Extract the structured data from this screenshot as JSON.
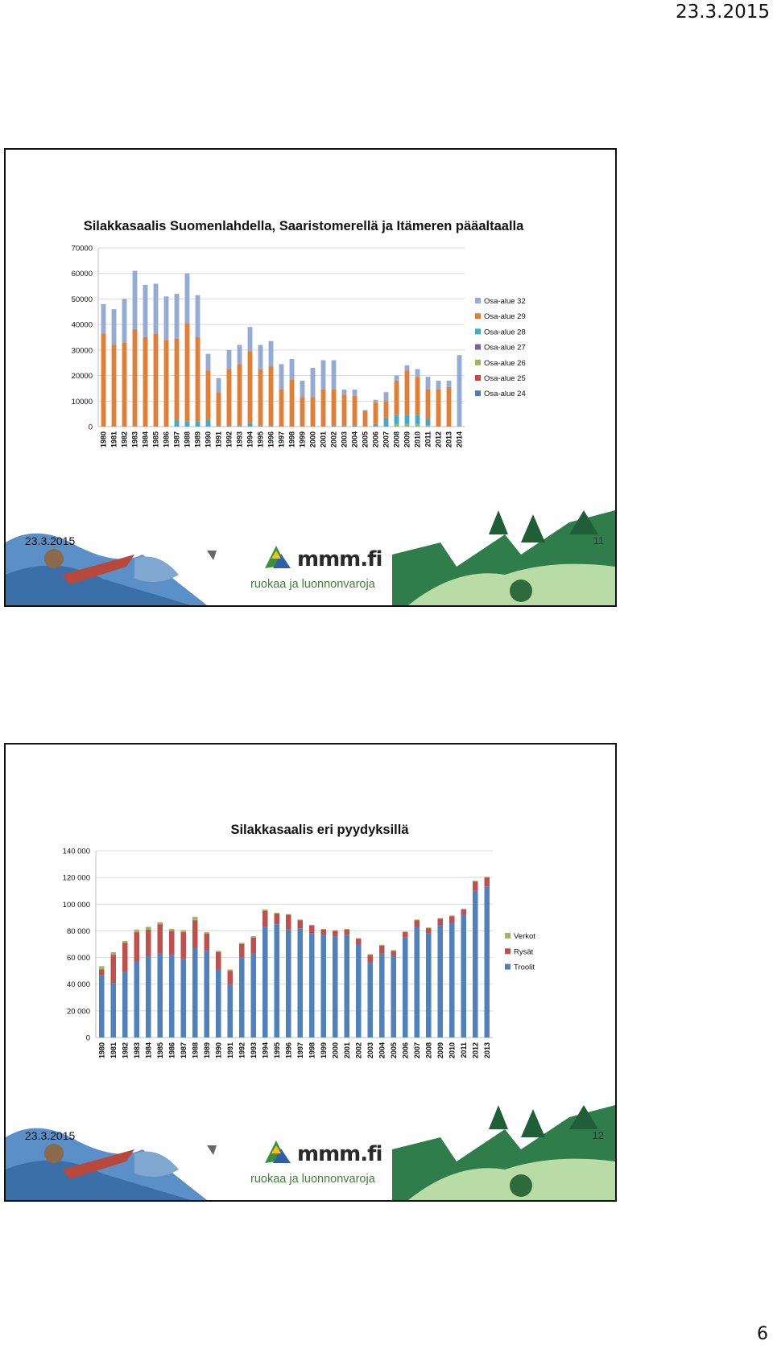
{
  "page": {
    "date": "23.3.2015",
    "number": "6"
  },
  "slides": [
    {
      "footer_date": "23.3.2015",
      "slide_number": "11",
      "logo_text": "mmm.fi",
      "logo_sub": "ruokaa ja luonnonvaroja"
    },
    {
      "footer_date": "23.3.2015",
      "slide_number": "12",
      "logo_text": "mmm.fi",
      "logo_sub": "ruokaa ja luonnonvaroja"
    }
  ],
  "chart_data": [
    {
      "type": "bar",
      "stacked": true,
      "title": "Silakkasaalis Suomenlahdella, Saaristomerellä ja Itämeren pääaltaalla",
      "xlabel": "",
      "ylabel": "",
      "ylim": [
        0,
        70000
      ],
      "yticks": [
        0,
        10000,
        20000,
        30000,
        40000,
        50000,
        60000,
        70000
      ],
      "grid": true,
      "legend_position": "right",
      "categories": [
        "1980",
        "1981",
        "1982",
        "1983",
        "1984",
        "1985",
        "1986",
        "1987",
        "1988",
        "1989",
        "1990",
        "1991",
        "1992",
        "1993",
        "1994",
        "1995",
        "1996",
        "1997",
        "1998",
        "1999",
        "2000",
        "2001",
        "2002",
        "2003",
        "2004",
        "2005",
        "2006",
        "2007",
        "2008",
        "2009",
        "2010",
        "2011",
        "2012",
        "2013",
        "2014"
      ],
      "series": [
        {
          "name": "Osa-alue 24",
          "color": "#4a7ebb",
          "values": [
            0,
            0,
            0,
            0,
            0,
            0,
            0,
            0,
            0,
            0,
            0,
            0,
            0,
            0,
            0,
            0,
            0,
            0,
            0,
            0,
            0,
            0,
            0,
            0,
            0,
            0,
            0,
            0,
            0,
            0,
            0,
            0,
            0,
            0,
            0
          ]
        },
        {
          "name": "Osa-alue 25",
          "color": "#be4b48",
          "values": [
            0,
            0,
            0,
            0,
            0,
            0,
            0,
            0,
            0,
            0,
            0,
            0,
            0,
            0,
            0,
            0,
            0,
            0,
            0,
            0,
            0,
            0,
            0,
            0,
            0,
            0,
            0,
            0,
            0,
            0,
            0,
            0,
            0,
            0,
            0
          ]
        },
        {
          "name": "Osa-alue 26",
          "color": "#98b954",
          "values": [
            0,
            0,
            0,
            0,
            0,
            0,
            0,
            0,
            0,
            0,
            0,
            0,
            0,
            0,
            0,
            0,
            0,
            0,
            0,
            0,
            0,
            0,
            0,
            0,
            0,
            0,
            0,
            0,
            1000,
            1000,
            1000,
            500,
            0,
            0,
            0
          ]
        },
        {
          "name": "Osa-alue 27",
          "color": "#7d60a0",
          "values": [
            0,
            0,
            0,
            0,
            0,
            0,
            0,
            0,
            0,
            0,
            0,
            0,
            0,
            0,
            0,
            0,
            0,
            0,
            0,
            0,
            0,
            0,
            0,
            0,
            0,
            0,
            0,
            0,
            0,
            0,
            0,
            0,
            0,
            0,
            0
          ]
        },
        {
          "name": "Osa-alue 28",
          "color": "#46aac5",
          "values": [
            0,
            0,
            0,
            0,
            0,
            0,
            0,
            2500,
            2000,
            2000,
            2500,
            500,
            500,
            500,
            1500,
            500,
            500,
            0,
            0,
            0,
            0,
            0,
            500,
            500,
            500,
            0,
            1000,
            3500,
            3500,
            3500,
            3500,
            2500,
            0,
            0,
            0
          ]
        },
        {
          "name": "Osa-alue 29",
          "color": "#e07f35",
          "values": [
            36500,
            32000,
            33000,
            38000,
            35000,
            36500,
            34000,
            32000,
            38500,
            33000,
            19500,
            13000,
            22000,
            24000,
            28000,
            22000,
            23000,
            14500,
            18500,
            11500,
            11500,
            14500,
            14000,
            12000,
            11500,
            6000,
            8500,
            6500,
            13500,
            17500,
            15000,
            11500,
            14500,
            15500,
            0
          ]
        },
        {
          "name": "Osa-alue 32",
          "color": "#94abd4",
          "values": [
            11500,
            14000,
            17000,
            23000,
            20500,
            19500,
            17000,
            17500,
            19500,
            16500,
            6500,
            5500,
            7500,
            7500,
            9500,
            9500,
            10000,
            10000,
            8000,
            6500,
            11500,
            11500,
            11500,
            2000,
            2500,
            500,
            1000,
            3500,
            2000,
            2000,
            3000,
            5000,
            3500,
            2500,
            28000
          ]
        }
      ]
    },
    {
      "type": "bar",
      "stacked": true,
      "title": "Silakkasaalis eri pyydyksillä",
      "xlabel": "",
      "ylabel": "",
      "ylim": [
        0,
        140000
      ],
      "yticks": [
        "0",
        "20 000",
        "40 000",
        "60 000",
        "80 000",
        "100 000",
        "120 000",
        "140 000"
      ],
      "grid": true,
      "legend_position": "right",
      "categories": [
        "1980",
        "1981",
        "1982",
        "1983",
        "1984",
        "1985",
        "1986",
        "1987",
        "1988",
        "1989",
        "1990",
        "1991",
        "1992",
        "1993",
        "1994",
        "1995",
        "1996",
        "1997",
        "1998",
        "1999",
        "2000",
        "2001",
        "2002",
        "2003",
        "2004",
        "2005",
        "2006",
        "2007",
        "2008",
        "2009",
        "2010",
        "2011",
        "2012",
        "2013"
      ],
      "series": [
        {
          "name": "Troolit",
          "color": "#4f81bd",
          "values": [
            47000,
            41000,
            49000,
            57000,
            61000,
            63000,
            62000,
            59000,
            67000,
            65000,
            51000,
            40000,
            60000,
            63000,
            83000,
            85000,
            81000,
            82000,
            78000,
            77000,
            76000,
            77000,
            70000,
            56000,
            63000,
            61000,
            75000,
            83000,
            78000,
            84000,
            86000,
            92000,
            110000,
            113000
          ]
        },
        {
          "name": "Rysät",
          "color": "#c0504d",
          "values": [
            4000,
            21000,
            22000,
            22000,
            20000,
            22000,
            18000,
            20000,
            21000,
            13000,
            13000,
            10000,
            10000,
            12000,
            12000,
            8000,
            11000,
            6000,
            6000,
            4000,
            4000,
            4000,
            4000,
            6000,
            6000,
            4000,
            4000,
            5000,
            4000,
            5000,
            5000,
            4000,
            7000,
            7000
          ]
        },
        {
          "name": "Verkot",
          "color": "#9bbb59",
          "values": [
            2500,
            2000,
            1500,
            2000,
            2000,
            1500,
            1500,
            1500,
            2500,
            1000,
            1000,
            1000,
            1000,
            1000,
            1000,
            500,
            500,
            500,
            500,
            500,
            500,
            500,
            500,
            500,
            500,
            500,
            500,
            500,
            500,
            500,
            500,
            500,
            500,
            500
          ]
        }
      ]
    }
  ]
}
